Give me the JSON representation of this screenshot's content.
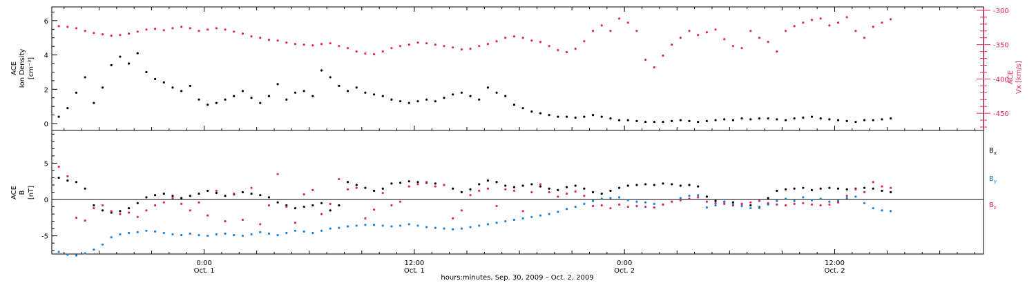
{
  "figure": {
    "xlabel": "hours:minutes, Sep. 30, 2009 – Oct. 2, 2009",
    "x_ticks": [
      {
        "time": "0:00",
        "date": "Oct. 1",
        "hours": 0
      },
      {
        "time": "12:00",
        "date": "Oct. 1",
        "hours": 12
      },
      {
        "time": "0:00",
        "date": "Oct. 2",
        "hours": 24
      },
      {
        "time": "12:00",
        "date": "Oct. 2",
        "hours": 36
      }
    ],
    "xlim_hours": [
      -8.7,
      44.5
    ],
    "colors": {
      "black": "#000000",
      "pink": "#e0265a",
      "blue": "#1a80d8",
      "axis": "#000000"
    }
  },
  "chart_data": [
    {
      "type": "scatter",
      "panel": "top",
      "ylabel_left": [
        "ACE",
        "Ion Density",
        "[cm⁻³]"
      ],
      "ylabel_right": [
        "ACE",
        "Vx [km/s]"
      ],
      "left_axis": {
        "ylim": [
          -0.4,
          6.8
        ],
        "ticks": [
          0,
          2,
          4,
          6
        ]
      },
      "right_axis": {
        "ylim": [
          -475,
          -295
        ],
        "ticks": [
          -300,
          -350,
          -400,
          -450
        ],
        "color": "#e0265a"
      },
      "series": [
        {
          "name": "Ion Density",
          "axis": "left",
          "color": "#000000",
          "x_hours": [
            -8.3,
            -7.8,
            -7.3,
            -6.8,
            -6.3,
            -5.8,
            -5.3,
            -4.8,
            -4.3,
            -3.8,
            -3.3,
            -2.8,
            -2.3,
            -1.8,
            -1.3,
            -0.8,
            -0.3,
            0.2,
            0.7,
            1.2,
            1.7,
            2.2,
            2.7,
            3.2,
            3.7,
            4.2,
            4.7,
            5.2,
            5.7,
            6.2,
            6.7,
            7.2,
            7.7,
            8.2,
            8.7,
            9.2,
            9.7,
            10.2,
            10.7,
            11.2,
            11.7,
            12.2,
            12.7,
            13.2,
            13.7,
            14.2,
            14.7,
            15.2,
            15.7,
            16.2,
            16.7,
            17.2,
            17.7,
            18.2,
            18.7,
            19.2,
            19.7,
            20.2,
            20.7,
            21.2,
            21.7,
            22.2,
            22.7,
            23.2,
            23.7,
            24.2,
            24.7,
            25.2,
            25.7,
            26.2,
            26.7,
            27.2,
            27.7,
            28.2,
            28.7,
            29.2,
            29.7,
            30.2,
            30.7,
            31.2,
            31.7,
            32.2,
            32.7,
            33.2,
            33.7,
            34.2,
            34.7,
            35.2,
            35.7,
            36.2,
            36.7,
            37.2,
            37.7,
            38.2,
            38.7,
            39.2
          ],
          "values": [
            0.4,
            0.9,
            1.8,
            2.7,
            1.2,
            2.1,
            3.4,
            3.9,
            3.5,
            4.1,
            3.0,
            2.6,
            2.4,
            2.1,
            1.9,
            2.2,
            1.4,
            1.1,
            1.2,
            1.4,
            1.6,
            1.9,
            1.5,
            1.2,
            1.6,
            2.3,
            1.4,
            1.8,
            1.9,
            1.6,
            3.1,
            2.7,
            2.2,
            1.9,
            2.1,
            1.8,
            1.7,
            1.6,
            1.4,
            1.3,
            1.2,
            1.3,
            1.4,
            1.3,
            1.5,
            1.7,
            1.8,
            1.6,
            1.4,
            2.1,
            1.8,
            1.6,
            1.1,
            0.9,
            0.7,
            0.6,
            0.5,
            0.4,
            0.4,
            0.35,
            0.4,
            0.5,
            0.4,
            0.3,
            0.2,
            0.2,
            0.15,
            0.1,
            0.1,
            0.1,
            0.15,
            0.2,
            0.15,
            0.1,
            0.15,
            0.2,
            0.25,
            0.2,
            0.3,
            0.25,
            0.3,
            0.3,
            0.25,
            0.2,
            0.3,
            0.35,
            0.4,
            0.3,
            0.25,
            0.2,
            0.15,
            0.1,
            0.2,
            0.2,
            0.25,
            0.3
          ]
        },
        {
          "name": "Vx",
          "axis": "right",
          "color": "#e0265a",
          "x_hours": [
            -8.3,
            -7.8,
            -7.3,
            -6.8,
            -6.3,
            -5.8,
            -5.3,
            -4.8,
            -4.3,
            -3.8,
            -3.3,
            -2.8,
            -2.3,
            -1.8,
            -1.3,
            -0.8,
            -0.3,
            0.2,
            0.7,
            1.2,
            1.7,
            2.2,
            2.7,
            3.2,
            3.7,
            4.2,
            4.7,
            5.2,
            5.7,
            6.2,
            6.7,
            7.2,
            7.7,
            8.2,
            8.7,
            9.2,
            9.7,
            10.2,
            10.7,
            11.2,
            11.7,
            12.2,
            12.7,
            13.2,
            13.7,
            14.2,
            14.7,
            15.2,
            15.7,
            16.2,
            16.7,
            17.2,
            17.7,
            18.2,
            18.7,
            19.2,
            19.7,
            20.2,
            20.7,
            21.2,
            21.7,
            22.2,
            22.7,
            23.2,
            23.7,
            24.2,
            24.7,
            25.2,
            25.7,
            26.2,
            26.7,
            27.2,
            27.7,
            28.2,
            28.7,
            29.2,
            29.7,
            30.2,
            30.7,
            31.2,
            31.7,
            32.2,
            32.7,
            33.2,
            33.7,
            34.2,
            34.7,
            35.2,
            35.7,
            36.2,
            36.7,
            37.2,
            37.7,
            38.2,
            38.7,
            39.2
          ],
          "values": [
            -323,
            -324,
            -326,
            -330,
            -333,
            -335,
            -337,
            -336,
            -334,
            -331,
            -328,
            -327,
            -329,
            -326,
            -324,
            -326,
            -330,
            -328,
            -326,
            -328,
            -331,
            -334,
            -338,
            -340,
            -343,
            -344,
            -347,
            -349,
            -350,
            -351,
            -349,
            -348,
            -352,
            -355,
            -360,
            -363,
            -364,
            -360,
            -355,
            -352,
            -350,
            -347,
            -348,
            -350,
            -352,
            -354,
            -357,
            -356,
            -352,
            -349,
            -345,
            -340,
            -338,
            -340,
            -344,
            -346,
            -352,
            -358,
            -361,
            -356,
            -345,
            -330,
            -322,
            -330,
            -312,
            -318,
            -330,
            -372,
            -383,
            -366,
            -350,
            -340,
            -330,
            -336,
            -332,
            -328,
            -342,
            -352,
            -355,
            -330,
            -340,
            -346,
            -360,
            -330,
            -323,
            -318,
            -314,
            -312,
            -322,
            -318,
            -310,
            -330,
            -340,
            -324,
            -318,
            -313
          ]
        }
      ]
    },
    {
      "type": "scatter",
      "panel": "bottom",
      "ylabel_left": [
        "ACE",
        "B",
        "[nT]"
      ],
      "ylim": [
        -7.5,
        9.5
      ],
      "ticks": [
        -5,
        0,
        5
      ],
      "zero_line": true,
      "legend": [
        {
          "label": "Bx",
          "base": "B",
          "sub": "x",
          "color": "#000000"
        },
        {
          "label": "By",
          "base": "B",
          "sub": "y",
          "color": "#1a80d8"
        },
        {
          "label": "Bz",
          "base": "B",
          "sub": "z",
          "color": "#e0265a"
        }
      ],
      "legend_position": "right",
      "series": [
        {
          "name": "Bx",
          "color": "#000000",
          "x_hours": [
            -8.3,
            -7.8,
            -7.3,
            -6.8,
            -6.3,
            -5.8,
            -5.3,
            -4.8,
            -4.3,
            -3.8,
            -3.3,
            -2.8,
            -2.3,
            -1.8,
            -1.3,
            -0.8,
            -0.3,
            0.2,
            0.7,
            1.2,
            1.7,
            2.2,
            2.7,
            3.2,
            3.7,
            4.2,
            4.7,
            5.2,
            5.7,
            6.2,
            6.7,
            7.2,
            7.7,
            8.2,
            8.7,
            9.2,
            9.7,
            10.2,
            10.7,
            11.2,
            11.7,
            12.2,
            12.7,
            13.2,
            13.7,
            14.2,
            14.7,
            15.2,
            15.7,
            16.2,
            16.7,
            17.2,
            17.7,
            18.2,
            18.7,
            19.2,
            19.7,
            20.2,
            20.7,
            21.2,
            21.7,
            22.2,
            22.7,
            23.2,
            23.7,
            24.2,
            24.7,
            25.2,
            25.7,
            26.2,
            26.7,
            27.2,
            27.7,
            28.2,
            28.7,
            29.2,
            29.7,
            30.2,
            30.7,
            31.2,
            31.7,
            32.2,
            32.7,
            33.2,
            33.7,
            34.2,
            34.7,
            35.2,
            35.7,
            36.2,
            36.7,
            37.2,
            37.7,
            38.2,
            38.7,
            39.2
          ],
          "values": [
            3.0,
            2.6,
            2.4,
            1.5,
            -0.8,
            -1.5,
            -1.8,
            -1.6,
            -1.2,
            -0.5,
            0.3,
            0.6,
            0.8,
            0.5,
            0.2,
            0.5,
            0.8,
            1.2,
            0.9,
            0.5,
            0.7,
            1.0,
            0.8,
            0.6,
            0.3,
            -0.4,
            -0.8,
            -1.2,
            -1.0,
            -0.8,
            -0.5,
            -1.5,
            -0.8,
            2.4,
            2.0,
            1.6,
            1.2,
            1.5,
            2.2,
            2.3,
            2.5,
            2.4,
            2.3,
            2.2,
            2.0,
            1.5,
            1.0,
            1.4,
            2.1,
            2.6,
            2.4,
            1.9,
            1.7,
            1.9,
            2.1,
            1.8,
            1.5,
            1.3,
            1.7,
            1.9,
            1.5,
            1.0,
            0.8,
            1.2,
            1.6,
            1.9,
            2.0,
            2.1,
            2.0,
            2.2,
            2.1,
            1.9,
            2.0,
            1.8,
            0.4,
            -0.2,
            -0.3,
            -0.4,
            -0.6,
            -0.8,
            -1.1,
            0.2,
            1.2,
            1.4,
            1.5,
            1.6,
            1.3,
            1.5,
            1.6,
            1.5,
            1.4,
            1.5,
            1.6,
            1.5,
            1.2,
            1.0
          ]
        },
        {
          "name": "By",
          "color": "#1a80d8",
          "x_hours": [
            -8.3,
            -7.8,
            -7.3,
            -6.8,
            -6.3,
            -5.8,
            -5.3,
            -4.8,
            -4.3,
            -3.8,
            -3.3,
            -2.8,
            -2.3,
            -1.8,
            -1.3,
            -0.8,
            -0.3,
            0.2,
            0.7,
            1.2,
            1.7,
            2.2,
            2.7,
            3.2,
            3.7,
            4.2,
            4.7,
            5.2,
            5.7,
            6.2,
            6.7,
            7.2,
            7.7,
            8.2,
            8.7,
            9.2,
            9.7,
            10.2,
            10.7,
            11.2,
            11.7,
            12.2,
            12.7,
            13.2,
            13.7,
            14.2,
            14.7,
            15.2,
            15.7,
            16.2,
            16.7,
            17.2,
            17.7,
            18.2,
            18.7,
            19.2,
            19.7,
            20.2,
            20.7,
            21.2,
            21.7,
            22.2,
            22.7,
            23.2,
            23.7,
            24.2,
            24.7,
            25.2,
            25.7,
            26.2,
            26.7,
            27.2,
            27.7,
            28.2,
            28.7,
            29.2,
            29.7,
            30.2,
            30.7,
            31.2,
            31.7,
            32.2,
            32.7,
            33.2,
            33.7,
            34.2,
            34.7,
            35.2,
            35.7,
            36.2,
            36.7,
            37.2,
            37.7,
            38.2,
            38.7,
            39.2
          ],
          "values": [
            -7.2,
            -7.6,
            -7.7,
            -7.4,
            -6.9,
            -6.2,
            -5.2,
            -4.8,
            -4.6,
            -4.5,
            -4.3,
            -4.4,
            -4.6,
            -4.8,
            -4.9,
            -4.7,
            -4.9,
            -5.0,
            -4.8,
            -4.7,
            -4.9,
            -5.0,
            -4.8,
            -4.5,
            -4.7,
            -4.9,
            -4.6,
            -4.3,
            -4.4,
            -4.6,
            -4.3,
            -4.0,
            -3.9,
            -3.7,
            -3.6,
            -3.5,
            -3.5,
            -3.6,
            -3.7,
            -3.6,
            -3.4,
            -3.6,
            -3.8,
            -3.9,
            -4.0,
            -4.1,
            -4.0,
            -3.8,
            -3.6,
            -3.4,
            -3.2,
            -3.0,
            -2.8,
            -2.6,
            -2.4,
            -2.2,
            -2.0,
            -1.7,
            -1.3,
            -1.0,
            -0.6,
            -0.2,
            0.1,
            0.2,
            0.3,
            -0.1,
            -0.3,
            -0.4,
            -0.6,
            -0.7,
            -0.3,
            0.2,
            0.5,
            0.6,
            -1.1,
            -0.8,
            -0.3,
            -0.6,
            -0.9,
            -1.2,
            -1.0,
            -0.7,
            -0.2,
            0.1,
            -0.2,
            0.3,
            -0.1,
            0.1,
            -0.3,
            -0.2,
            0.2,
            0.4,
            -0.5,
            -1.2,
            -1.5,
            -1.6
          ]
        },
        {
          "name": "Bz",
          "color": "#e0265a",
          "x_hours": [
            -8.3,
            -7.8,
            -7.3,
            -6.8,
            -6.3,
            -5.8,
            -5.3,
            -4.8,
            -4.3,
            -3.8,
            -3.3,
            -2.8,
            -2.3,
            -1.8,
            -1.3,
            -0.8,
            -0.3,
            0.2,
            0.7,
            1.2,
            1.7,
            2.2,
            2.7,
            3.2,
            3.7,
            4.2,
            4.7,
            5.2,
            5.7,
            6.2,
            6.7,
            7.2,
            7.7,
            8.2,
            8.7,
            9.2,
            9.7,
            10.2,
            10.7,
            11.2,
            11.7,
            12.2,
            12.7,
            13.2,
            13.7,
            14.2,
            14.7,
            15.2,
            15.7,
            16.2,
            16.7,
            17.2,
            17.7,
            18.2,
            18.7,
            19.2,
            19.7,
            20.2,
            20.7,
            21.2,
            21.7,
            22.2,
            22.7,
            23.2,
            23.7,
            24.2,
            24.7,
            25.2,
            25.7,
            26.2,
            26.7,
            27.2,
            27.7,
            28.2,
            28.7,
            29.2,
            29.7,
            30.2,
            30.7,
            31.2,
            31.7,
            32.2,
            32.7,
            33.2,
            33.7,
            34.2,
            34.7,
            35.2,
            35.7,
            36.2,
            36.7,
            37.2,
            37.7,
            38.2,
            38.7,
            39.2
          ],
          "values": [
            4.5,
            3.2,
            -2.5,
            -2.9,
            -1.2,
            -0.8,
            -1.6,
            -2.0,
            -1.8,
            -2.4,
            -1.5,
            -0.8,
            -0.4,
            0.2,
            -0.6,
            -1.5,
            -0.4,
            -2.2,
            1.2,
            -3.0,
            0.8,
            -2.8,
            1.6,
            -3.4,
            -0.8,
            3.5,
            -1.0,
            -3.2,
            0.7,
            1.3,
            -2.0,
            -0.6,
            2.8,
            1.4,
            1.6,
            -2.6,
            -1.4,
            0.9,
            -0.8,
            -0.3,
            1.8,
            2.1,
            2.4,
            1.8,
            2.0,
            -2.6,
            -1.5,
            0.6,
            1.2,
            1.5,
            -0.9,
            1.4,
            1.2,
            -1.6,
            1.0,
            2.1,
            1.0,
            0.4,
            0.8,
            1.1,
            0.5,
            -0.9,
            -0.8,
            -1.2,
            -0.7,
            -1.0,
            -0.9,
            -1.0,
            -1.1,
            -0.7,
            -0.3,
            -0.1,
            0.1,
            0.3,
            -0.3,
            -0.5,
            -0.6,
            -0.8,
            -0.6,
            -0.4,
            -0.2,
            -0.5,
            -0.7,
            -0.8,
            -0.6,
            -0.5,
            -0.7,
            -0.8,
            -0.7,
            -0.4,
            0.5,
            1.4,
            1.0,
            2.4,
            1.8,
            1.6
          ]
        }
      ]
    }
  ]
}
